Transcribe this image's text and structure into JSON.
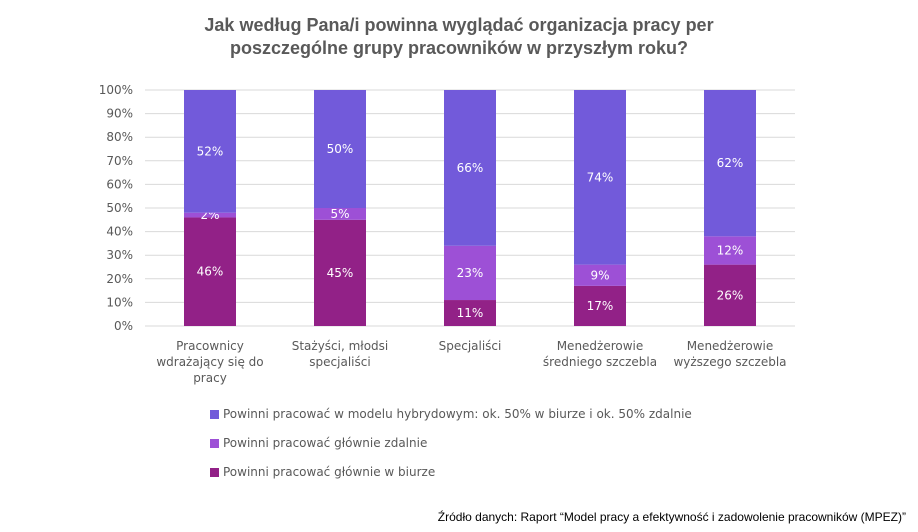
{
  "chart_data": {
    "type": "bar",
    "stacked": true,
    "title_line1": "Jak według Pana/i powinna wyglądać organizacja pracy per",
    "title_line2": "poszczególne grupy pracowników w przyszłym roku?",
    "categories": [
      [
        "Pracownicy",
        "wdrażający się do",
        "pracy"
      ],
      [
        "Stażyści, młodsi",
        "specjaliści"
      ],
      [
        "Specjaliści"
      ],
      [
        "Menedżerowie",
        "średniego szczebla"
      ],
      [
        "Menedżerowie",
        "wyższego szczebla"
      ]
    ],
    "series": [
      {
        "name": "Powinni pracować głównie w biurze",
        "color": "#922187",
        "values": [
          46,
          45,
          11,
          17,
          26
        ]
      },
      {
        "name": "Powinni pracować głównie zdalnie",
        "color": "#9D50D6",
        "values": [
          2,
          5,
          23,
          9,
          12
        ]
      },
      {
        "name": "Powinni pracować w modelu hybrydowym: ok. 50% w biurze i ok. 50% zdalnie",
        "color": "#725ADA",
        "values": [
          52,
          50,
          66,
          74,
          62
        ]
      }
    ],
    "legend_order": [
      2,
      1,
      0
    ],
    "yticks": [
      "0%",
      "10%",
      "20%",
      "30%",
      "40%",
      "50%",
      "60%",
      "70%",
      "80%",
      "90%",
      "100%"
    ],
    "ylim": [
      0,
      100
    ],
    "grid": true,
    "legend_position": "bottom",
    "source": "Źródło danych: Raport “Model pracy a efektywność i zadowolenie pracowników (MPEZ)”"
  }
}
